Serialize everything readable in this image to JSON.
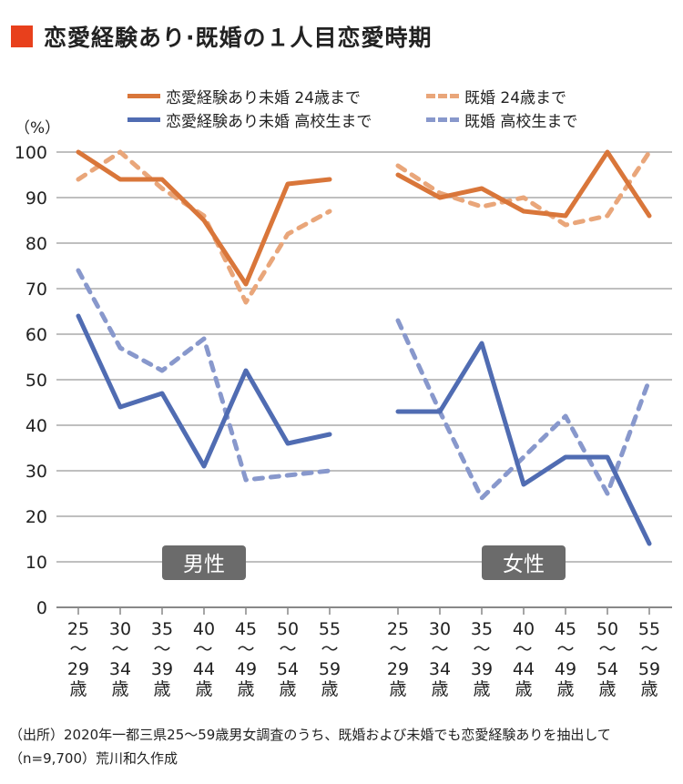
{
  "title": "恋愛経験あり·既婚の１人目恋愛時期",
  "colors": {
    "accent": "#e8401c",
    "orange": "#d9763a",
    "orange_light": "#e9a67a",
    "blue": "#506cb2",
    "blue_light": "#8898cc",
    "panel_label_bg": "#6b6b6b"
  },
  "footnote": "（出所）2020年一都三県25〜59歳男女調査のうち、既婚および未婚でも恋愛経験ありを抽出して（n=9,700）荒川和久作成",
  "chart_data": {
    "type": "line",
    "ylabel": "（%）",
    "ylim": [
      0,
      100
    ],
    "yticks": [
      0,
      10,
      20,
      30,
      40,
      50,
      60,
      70,
      80,
      90,
      100
    ],
    "grid": true,
    "legend_placement": "top",
    "categories": [
      [
        "25",
        "〜",
        "29",
        "歳"
      ],
      [
        "30",
        "〜",
        "34",
        "歳"
      ],
      [
        "35",
        "〜",
        "39",
        "歳"
      ],
      [
        "40",
        "〜",
        "44",
        "歳"
      ],
      [
        "45",
        "〜",
        "49",
        "歳"
      ],
      [
        "50",
        "〜",
        "54",
        "歳"
      ],
      [
        "55",
        "〜",
        "59",
        "歳"
      ]
    ],
    "series_styles": [
      {
        "name": "恋愛経験あり未婚 24歳まで",
        "color": "#d9763a",
        "dashed": false
      },
      {
        "name": "既婚 24歳まで",
        "color": "#e9a67a",
        "dashed": true
      },
      {
        "name": "恋愛経験あり未婚 高校生まで",
        "color": "#506cb2",
        "dashed": false
      },
      {
        "name": "既婚 高校生まで",
        "color": "#8898cc",
        "dashed": true
      }
    ],
    "panels": [
      {
        "label": "男性",
        "series": [
          {
            "name": "恋愛経験あり未婚 24歳まで",
            "values": [
              100,
              94,
              94,
              85,
              71,
              93,
              94
            ]
          },
          {
            "name": "既婚 24歳まで",
            "values": [
              94,
              100,
              92,
              86,
              67,
              82,
              87
            ]
          },
          {
            "name": "恋愛経験あり未婚 高校生まで",
            "values": [
              64,
              44,
              47,
              31,
              52,
              36,
              38
            ]
          },
          {
            "name": "既婚 高校生まで",
            "values": [
              74,
              57,
              52,
              59,
              28,
              29,
              30
            ]
          }
        ]
      },
      {
        "label": "女性",
        "series": [
          {
            "name": "恋愛経験あり未婚 24歳まで",
            "values": [
              95,
              90,
              92,
              87,
              86,
              100,
              86
            ]
          },
          {
            "name": "既婚 24歳まで",
            "values": [
              97,
              91,
              88,
              90,
              84,
              86,
              100
            ]
          },
          {
            "name": "恋愛経験あり未婚 高校生まで",
            "values": [
              43,
              43,
              58,
              27,
              33,
              33,
              14
            ]
          },
          {
            "name": "既婚 高校生まで",
            "values": [
              63,
              43,
              24,
              33,
              42,
              25,
              50
            ]
          }
        ]
      }
    ]
  }
}
